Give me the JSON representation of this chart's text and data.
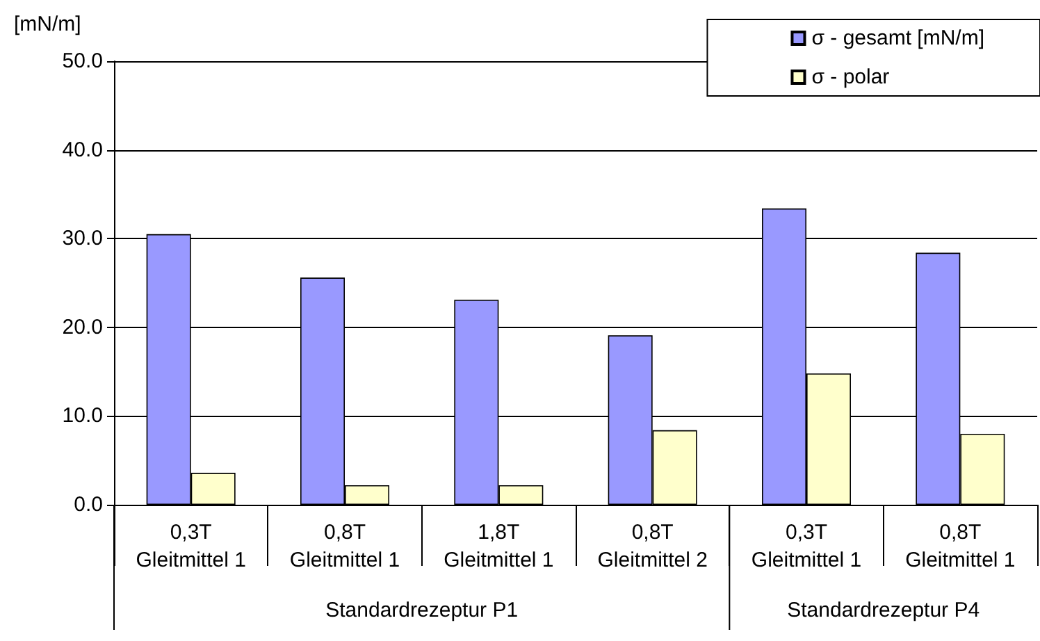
{
  "chart_data": {
    "type": "bar",
    "ylabel": "[mN/m]",
    "categories": [
      "0,3T\nGleitmittel 1",
      "0,8T\nGleitmittel 1",
      "1,8T\nGleitmittel 1",
      "0,8T\nGleitmittel 2",
      "0,3T\nGleitmittel 1",
      "0,8T\nGleitmittel 1"
    ],
    "series": [
      {
        "name": "σ - gesamt [mN/m]",
        "color": "#9999ff",
        "values": [
          30.5,
          25.6,
          23.1,
          19.1,
          33.4,
          28.4
        ]
      },
      {
        "name": "σ - polar",
        "color": "#ffffcc",
        "values": [
          3.6,
          2.2,
          2.2,
          8.4,
          14.8,
          8.0
        ]
      }
    ],
    "ylim": [
      0,
      50
    ],
    "yticks": [
      {
        "value": 0,
        "label": "0.0"
      },
      {
        "value": 10,
        "label": "10.0"
      },
      {
        "value": 20,
        "label": "20.0"
      },
      {
        "value": 30,
        "label": "30.0"
      },
      {
        "value": 40,
        "label": "40.0"
      },
      {
        "value": 50,
        "label": "50.0"
      }
    ],
    "grid": "y",
    "legend": "top right",
    "annotations": [
      "Standardrezeptur P1",
      "Standardrezeptur P4"
    ]
  }
}
